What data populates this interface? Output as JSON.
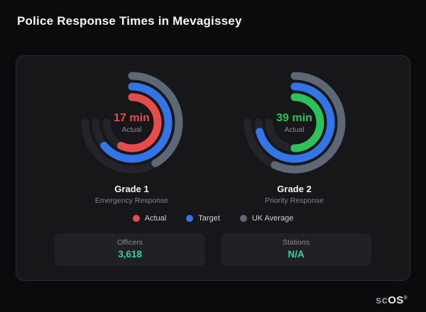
{
  "page": {
    "title": "Police Response Times in Mevagissey"
  },
  "brand": {
    "prefix": "sc",
    "suffix": "OS",
    "registered": "®"
  },
  "colors": {
    "actual_red": "#e74c4c",
    "actual_green": "#2bc25a",
    "target_blue": "#3374e8",
    "uk_average_gray": "#5c6876",
    "track": "#232329",
    "stat_accent": "#2dd4a0"
  },
  "chart_data": {
    "type": "gauge",
    "title": "Police Response Times in Mevagissey",
    "max_sweep_deg": 270,
    "legend_position": "bottom",
    "gauges": [
      {
        "name": "Grade 1",
        "subtitle": "Emergency Response",
        "value": "17 min",
        "value_number": 17,
        "unit": "min",
        "center_caption": "Actual",
        "accent": "#e74c4c",
        "rings": [
          {
            "series": "UK Average",
            "color": "#5c6876",
            "sweep_deg": 150
          },
          {
            "series": "Target",
            "color": "#3374e8",
            "sweep_deg": 230
          },
          {
            "series": "Actual",
            "color": "#e74c4c",
            "sweep_deg": 205
          }
        ]
      },
      {
        "name": "Grade 2",
        "subtitle": "Priority Response",
        "value": "39 min",
        "value_number": 39,
        "unit": "min",
        "center_caption": "Actual",
        "accent": "#2bc25a",
        "rings": [
          {
            "series": "UK Average",
            "color": "#5c6876",
            "sweep_deg": 205
          },
          {
            "series": "Target",
            "color": "#3374e8",
            "sweep_deg": 255
          },
          {
            "series": "Actual",
            "color": "#2bc25a",
            "sweep_deg": 180
          }
        ]
      }
    ],
    "legend": [
      {
        "label": "Actual",
        "color": "#e74c4c"
      },
      {
        "label": "Target",
        "color": "#3374e8"
      },
      {
        "label": "UK Average",
        "color": "#5c6876"
      }
    ]
  },
  "stats": [
    {
      "label": "Officers",
      "value": "3,618",
      "color": "#2dd4a0"
    },
    {
      "label": "Stations",
      "value": "N/A",
      "color": "#2dd4a0"
    }
  ]
}
